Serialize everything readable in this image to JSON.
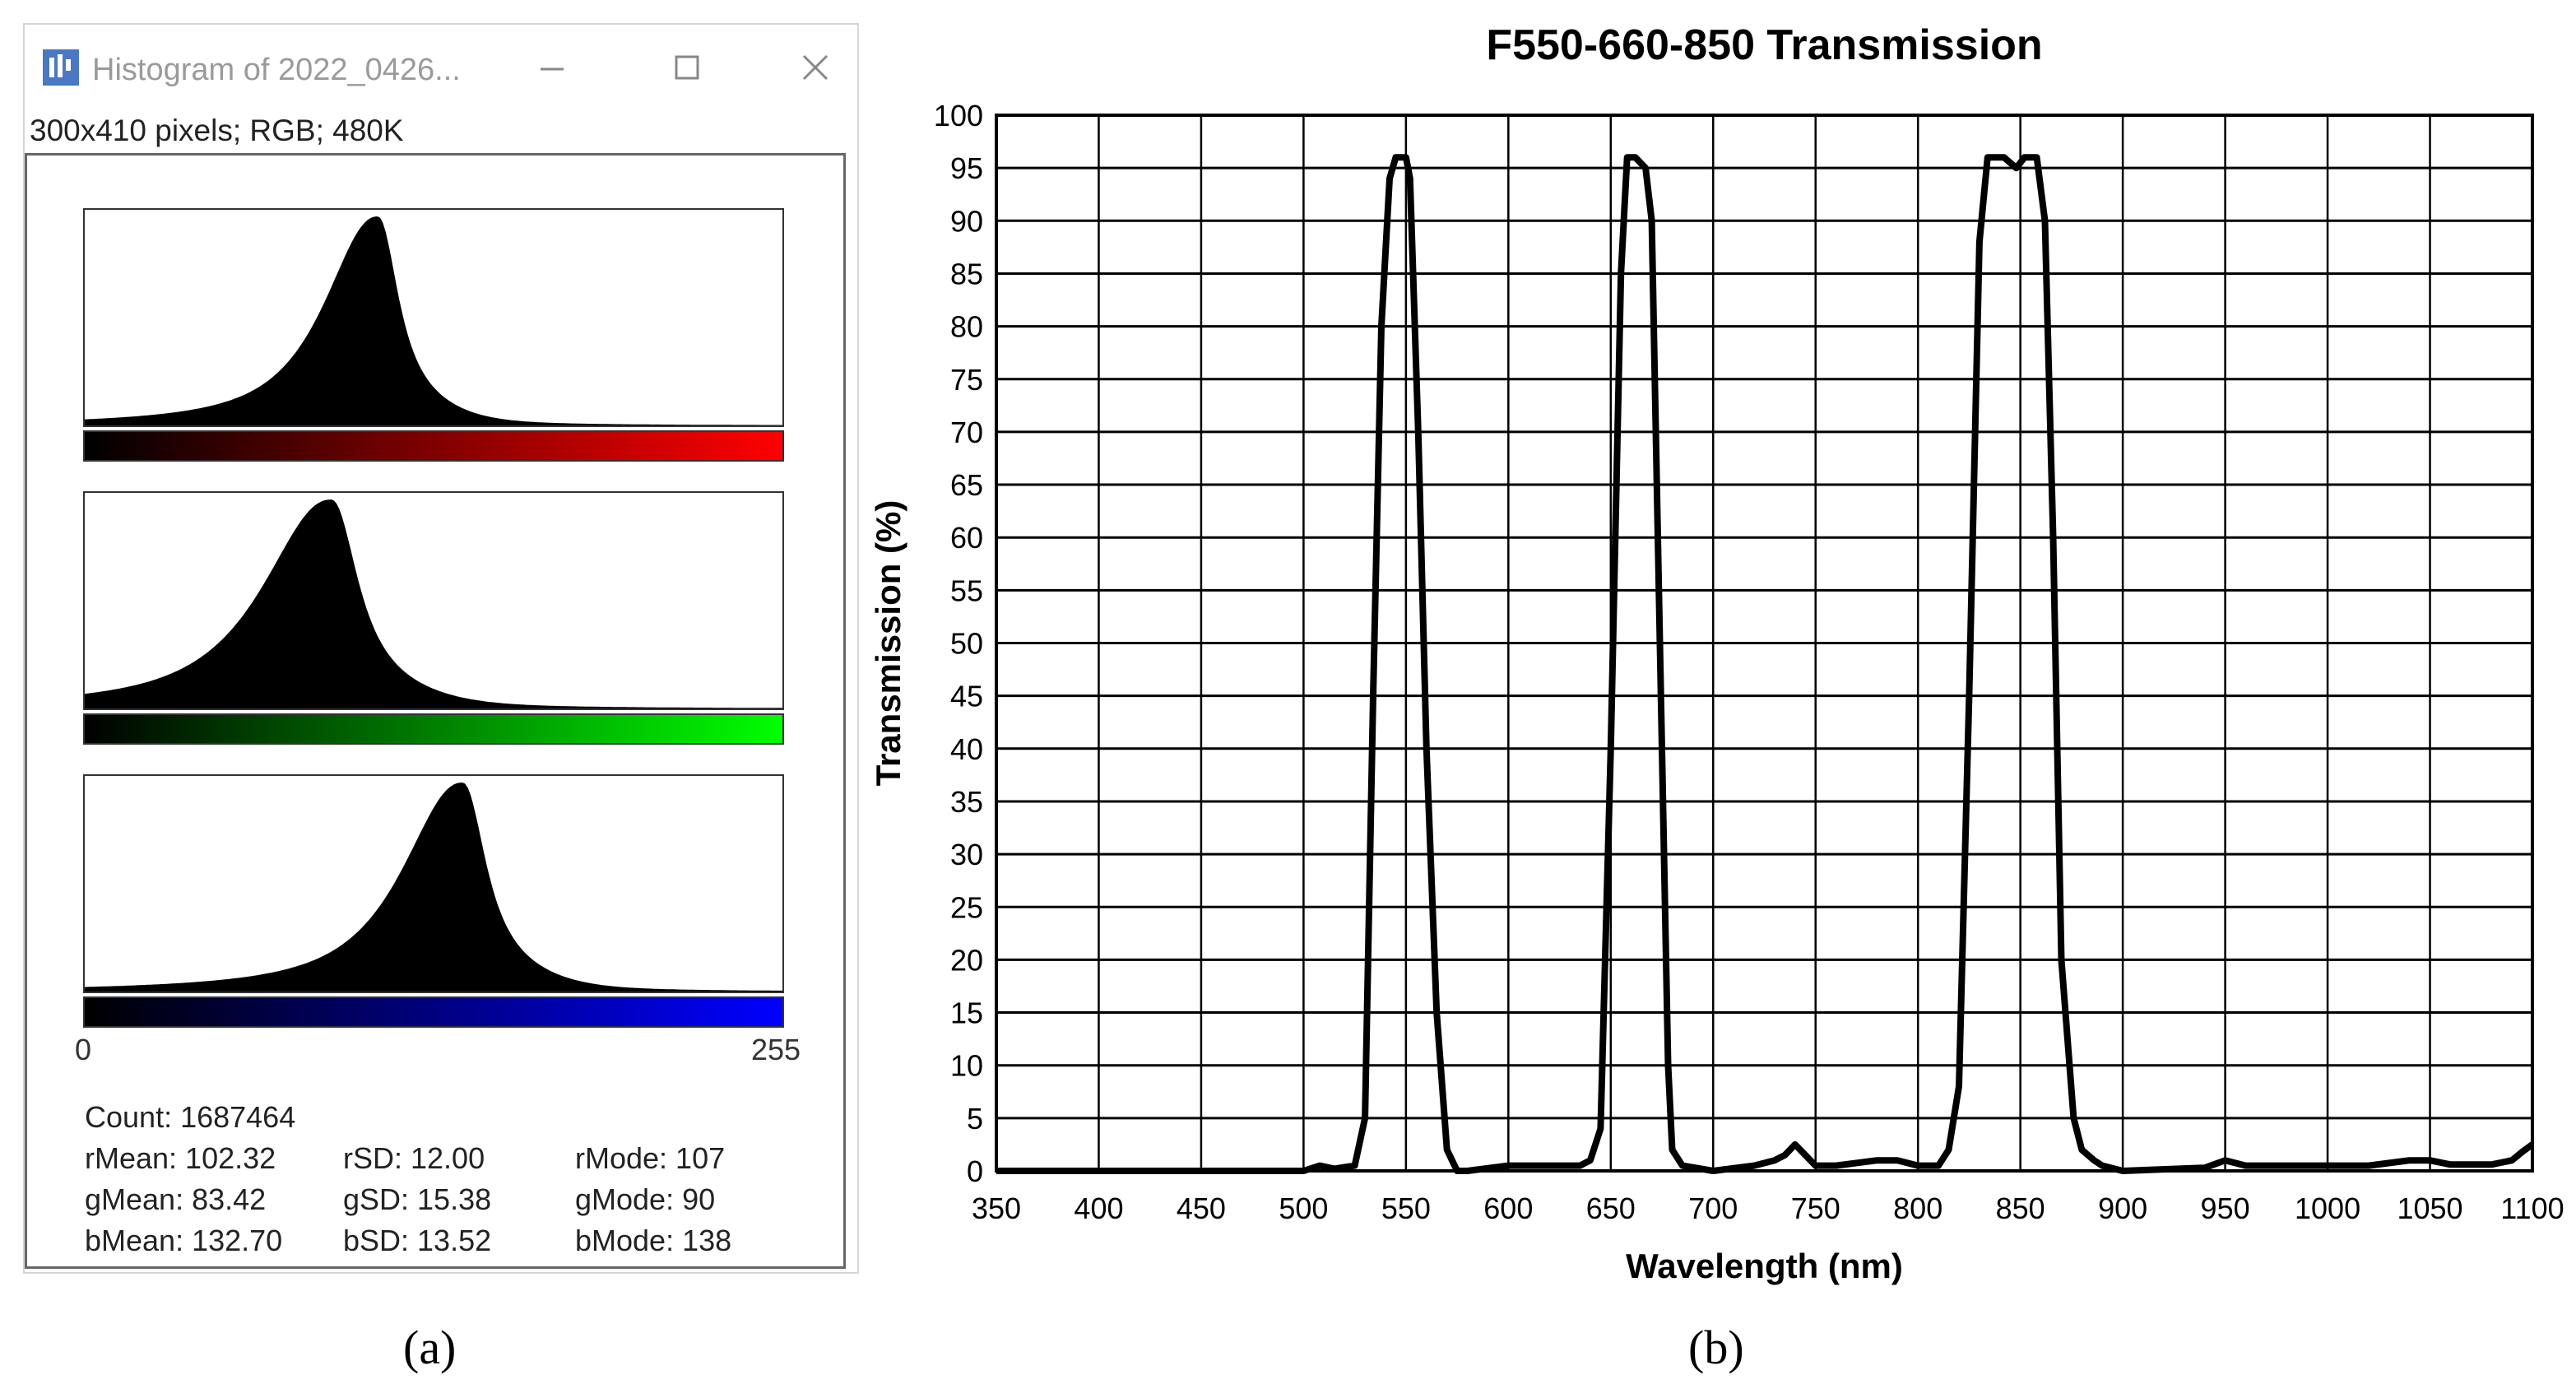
{
  "histogram_window": {
    "title": "Histogram of 2022_0426...",
    "subtitle": "300x410 pixels; RGB; 480K",
    "icons": {
      "app": "imagej-icon",
      "minimize": "minimize-icon",
      "maximize": "maximize-icon",
      "close": "close-icon"
    },
    "axis": {
      "min": "0",
      "max": "255"
    },
    "channels": [
      {
        "name": "red",
        "color": "#ff0000",
        "mode": 107,
        "sd": 12.0
      },
      {
        "name": "green",
        "color": "#00ff00",
        "mode": 90,
        "sd": 15.38
      },
      {
        "name": "blue",
        "color": "#0000ff",
        "mode": 138,
        "sd": 13.52
      }
    ],
    "stats": {
      "count": "Count: 1687464",
      "rMean": "rMean: 102.32",
      "rSD": "rSD: 12.00",
      "rMode": "rMode: 107",
      "gMean": "gMean: 83.42",
      "gSD": "gSD: 15.38",
      "gMode": "gMode: 90",
      "bMean": "bMean: 132.70",
      "bSD": "bSD: 13.52",
      "bMode": "bMode: 138"
    },
    "caption": "(a)"
  },
  "chart_data": {
    "type": "line",
    "title": "F550-660-850 Transmission",
    "xlabel": "Wavelength (nm)",
    "ylabel": "Transmission (%)",
    "xlim": [
      350,
      1100
    ],
    "ylim": [
      0,
      100
    ],
    "xticks": [
      350,
      400,
      450,
      500,
      550,
      600,
      650,
      700,
      750,
      800,
      850,
      900,
      950,
      1000,
      1050,
      1100
    ],
    "yticks": [
      0,
      5,
      10,
      15,
      20,
      25,
      30,
      35,
      40,
      45,
      50,
      55,
      60,
      65,
      70,
      75,
      80,
      85,
      90,
      95,
      100
    ],
    "grid": true,
    "series": [
      {
        "name": "F550-660-850",
        "x": [
          350,
          500,
          508,
          515,
          525,
          530,
          534,
          538,
          542,
          545,
          550,
          552,
          556,
          560,
          565,
          570,
          575,
          580,
          600,
          620,
          635,
          640,
          645,
          650,
          655,
          658,
          662,
          667,
          670,
          674,
          678,
          680,
          685,
          700,
          720,
          730,
          735,
          740,
          745,
          750,
          760,
          780,
          790,
          800,
          810,
          815,
          820,
          825,
          830,
          834,
          838,
          842,
          848,
          852,
          858,
          862,
          866,
          870,
          876,
          880,
          886,
          890,
          900,
          940,
          950,
          960,
          980,
          1000,
          1020,
          1040,
          1050,
          1060,
          1080,
          1090,
          1095,
          1100
        ],
        "y": [
          0,
          0,
          0.5,
          0.2,
          0.5,
          5,
          45,
          80,
          94,
          96,
          96,
          94,
          70,
          40,
          15,
          2,
          0,
          0,
          0.5,
          0.5,
          0.5,
          1,
          4,
          40,
          85,
          96,
          96,
          95,
          90,
          50,
          10,
          2,
          0.5,
          0,
          0.5,
          1,
          1.5,
          2.5,
          1.5,
          0.5,
          0.5,
          1,
          1,
          0.5,
          0.5,
          2,
          8,
          45,
          88,
          96,
          96,
          96,
          95,
          96,
          96,
          90,
          60,
          20,
          5,
          2,
          1,
          0.5,
          0,
          0.3,
          1,
          0.5,
          0.5,
          0.5,
          0.5,
          1,
          1,
          0.6,
          0.6,
          1,
          1.8,
          2.5
        ]
      }
    ],
    "caption": "(b)"
  }
}
